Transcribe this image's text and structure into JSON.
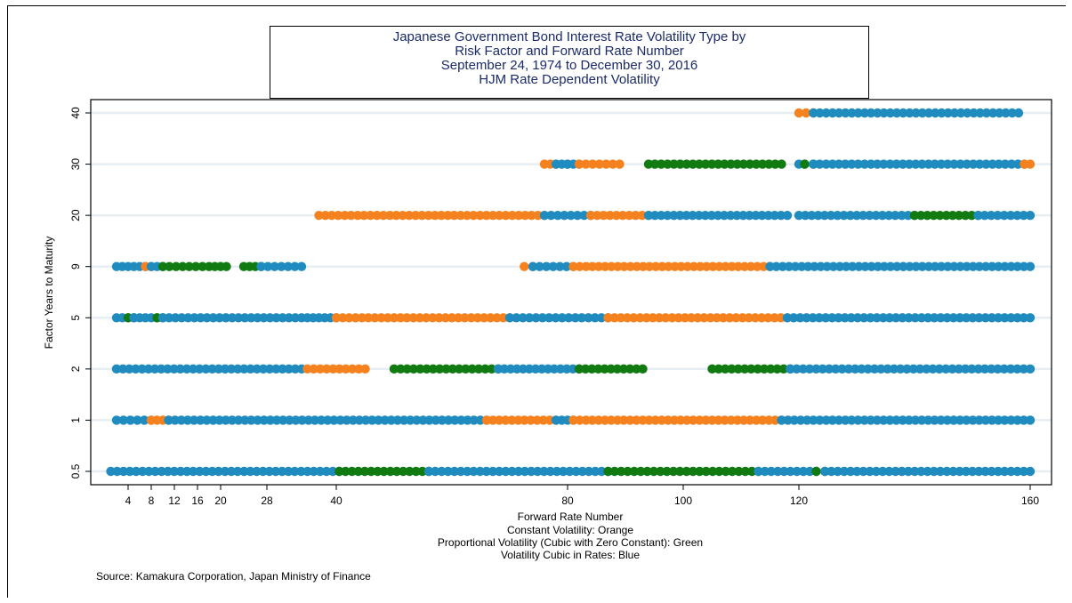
{
  "chart_data": {
    "type": "scatter",
    "title_lines": [
      "Japanese Government Bond Interest Rate Volatility Type by",
      "Risk Factor and Forward Rate Number",
      "September 24, 1974 to December 30, 2016",
      "HJM Rate Dependent Volatility"
    ],
    "xlabel": "Forward Rate Number",
    "ylabel": "Factor Years to Maturity",
    "x_ticks": [
      4,
      8,
      12,
      16,
      20,
      28,
      40,
      80,
      100,
      120,
      160
    ],
    "y_categories": [
      "0.5",
      "1",
      "2",
      "5",
      "9",
      "20",
      "30",
      "40"
    ],
    "legend_notes": [
      "Constant Volatility: Orange",
      "Proportional Volatility (Cubic with Zero Constant): Green",
      "Volatility Cubic in Rates: Blue"
    ],
    "source": "Source: Kamakura Corporation, Japan Ministry of Finance",
    "colors": {
      "Orange": "#f5821f",
      "Green": "#117a11",
      "Blue": "#1f8bbf",
      "title": "#1a2a6c",
      "grid": "#e6eef4"
    },
    "segments": {
      "0.5": [
        [
          "Blue",
          1,
          40.5
        ],
        [
          "Green",
          40.5,
          56
        ],
        [
          "Blue",
          56,
          87
        ],
        [
          "Green",
          87,
          113
        ],
        [
          "Blue",
          113,
          123
        ],
        [
          "Green",
          123,
          124.5
        ],
        [
          "Blue",
          124.5,
          160
        ]
      ],
      "1": [
        [
          "Blue",
          2,
          8
        ],
        [
          "Orange",
          8,
          11
        ],
        [
          "Blue",
          11,
          66
        ],
        [
          "Orange",
          66,
          78
        ],
        [
          "Blue",
          78,
          81
        ],
        [
          "Orange",
          81,
          117
        ],
        [
          "Blue",
          117,
          160
        ]
      ],
      "2": [
        [
          "Blue",
          2,
          34
        ],
        [
          "Orange",
          35,
          45
        ],
        [
          "Green",
          50,
          68
        ],
        [
          "Blue",
          68,
          82
        ],
        [
          "Green",
          82,
          93
        ],
        [
          "Green",
          105,
          118.5
        ],
        [
          "Blue",
          118.5,
          160
        ]
      ],
      "5": [
        [
          "Blue",
          2,
          4
        ],
        [
          "Green",
          4,
          5
        ],
        [
          "Blue",
          5,
          9
        ],
        [
          "Green",
          9,
          10
        ],
        [
          "Blue",
          10,
          34
        ],
        [
          "Blue",
          35,
          40
        ],
        [
          "Orange",
          40,
          70
        ],
        [
          "Blue",
          70,
          87
        ],
        [
          "Orange",
          87,
          118
        ],
        [
          "Blue",
          118,
          160
        ]
      ],
      "9": [
        [
          "Blue",
          2,
          7
        ],
        [
          "Orange",
          7,
          8
        ],
        [
          "Blue",
          8,
          10
        ],
        [
          "Green",
          10,
          18
        ],
        [
          "Green",
          19,
          21
        ],
        [
          "Green",
          24,
          27
        ],
        [
          "Blue",
          27,
          34
        ],
        [
          "Orange",
          72.5,
          74
        ],
        [
          "Blue",
          74,
          81
        ],
        [
          "Orange",
          81,
          115
        ],
        [
          "Blue",
          115,
          160
        ]
      ],
      "20": [
        [
          "Orange",
          37,
          76
        ],
        [
          "Blue",
          76,
          84
        ],
        [
          "Orange",
          84,
          94
        ],
        [
          "Blue",
          94,
          118
        ],
        [
          "Blue",
          120,
          140
        ],
        [
          "Green",
          140,
          151
        ],
        [
          "Blue",
          151,
          160
        ]
      ],
      "30": [
        [
          "Orange",
          76,
          78
        ],
        [
          "Blue",
          78,
          80
        ],
        [
          "Blue",
          80,
          82
        ],
        [
          "Orange",
          82,
          89
        ],
        [
          "Green",
          94,
          117
        ],
        [
          "Blue",
          120,
          121
        ],
        [
          "Green",
          121,
          122.5
        ],
        [
          "Blue",
          122.5,
          159
        ],
        [
          "Orange",
          159,
          160
        ]
      ],
      "40": [
        [
          "Orange",
          120,
          122.5
        ],
        [
          "Blue",
          122.5,
          158
        ]
      ]
    }
  }
}
